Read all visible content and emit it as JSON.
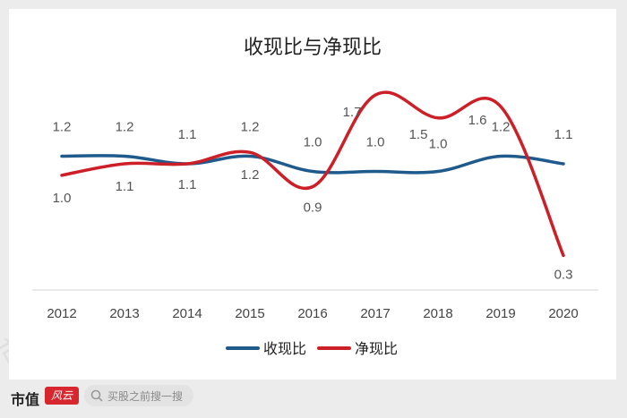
{
  "chart_data": {
    "type": "line",
    "title": "收现比与净现比",
    "categories": [
      "2012",
      "2013",
      "2014",
      "2015",
      "2016",
      "2017",
      "2018",
      "2019",
      "2020"
    ],
    "series": [
      {
        "name": "收现比",
        "color": "#1f5a8c",
        "values": [
          1.2,
          1.2,
          1.1,
          1.2,
          1.0,
          1.0,
          1.0,
          1.2,
          1.1
        ],
        "labels": [
          "1.2",
          "1.2",
          "1.1",
          "1.2",
          "1.0",
          "1.0",
          "1.0",
          "1.2",
          "1.1"
        ]
      },
      {
        "name": "净现比",
        "color": "#cc1f27",
        "values": [
          1.0,
          1.1,
          1.1,
          1.2,
          0.9,
          1.7,
          1.5,
          1.6,
          0.3
        ],
        "labels": [
          "1.0",
          "1.1",
          "1.1",
          "1.2",
          "0.9",
          "1.7",
          "1.5",
          "1.6",
          "0.3"
        ]
      }
    ],
    "legend": "bottom-center",
    "grid": false
  },
  "watermark": "市值风云",
  "footer": {
    "logo_text": "市值",
    "logo_mark": "风云",
    "search_placeholder": "买股之前搜一搜",
    "search_icon": "search-icon"
  }
}
